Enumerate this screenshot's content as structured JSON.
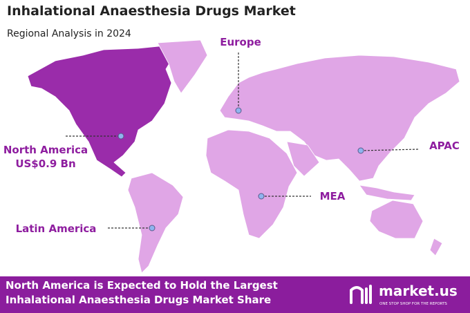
{
  "header": {
    "title": "Inhalational  Anaesthesia Drugs Market",
    "subtitle": "Regional Analysis in 2024"
  },
  "regions": [
    {
      "name": "Europe"
    },
    {
      "name": "North America",
      "value_label": "US$0.9 Bn"
    },
    {
      "name": "APAC"
    },
    {
      "name": "MEA"
    },
    {
      "name": "Latin America"
    }
  ],
  "footer": {
    "lines": [
      "North America is Expected to Hold the Largest",
      "Inhalational Anaesthesia Drugs Market Share"
    ]
  },
  "logo": {
    "name": "market.us",
    "tagline": "ONE STOP SHOP FOR THE REPORTS"
  }
}
